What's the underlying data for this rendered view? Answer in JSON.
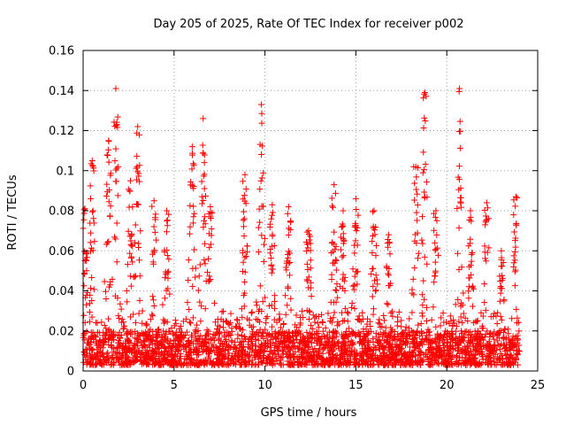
{
  "chart_data": {
    "type": "scatter",
    "title": "Day 205 of 2025, Rate Of TEC Index for receiver p002",
    "xlabel": "GPS time / hours",
    "ylabel": "ROTI / TECUs",
    "xlim": [
      0,
      25
    ],
    "ylim": [
      0,
      0.16
    ],
    "xticks": [
      0,
      5,
      10,
      15,
      20,
      25
    ],
    "yticks": [
      0,
      0.02,
      0.04,
      0.06,
      0.08,
      0.1,
      0.12,
      0.14,
      0.16
    ],
    "xtick_labels": [
      "0",
      "5",
      "10",
      "15",
      "20",
      "25"
    ],
    "ytick_labels": [
      "0",
      "0.02",
      "0.04",
      "0.06",
      "0.08",
      "0.1",
      "0.12",
      "0.14",
      "0.16"
    ],
    "grid": true,
    "marker": "+",
    "marker_color": "#ff0000",
    "series": [
      {
        "name": "ROTI",
        "x_range": [
          0,
          24
        ],
        "baseline_range": [
          0.003,
          0.02
        ],
        "peaks": [
          {
            "x": 0.1,
            "y": 0.081
          },
          {
            "x": 0.5,
            "y": 0.105
          },
          {
            "x": 1.4,
            "y": 0.115
          },
          {
            "x": 1.8,
            "y": 0.141
          },
          {
            "x": 2.6,
            "y": 0.095
          },
          {
            "x": 3.0,
            "y": 0.122
          },
          {
            "x": 3.9,
            "y": 0.085
          },
          {
            "x": 4.6,
            "y": 0.08
          },
          {
            "x": 6.0,
            "y": 0.112
          },
          {
            "x": 6.6,
            "y": 0.126
          },
          {
            "x": 7.0,
            "y": 0.082
          },
          {
            "x": 8.9,
            "y": 0.098
          },
          {
            "x": 9.8,
            "y": 0.133
          },
          {
            "x": 10.4,
            "y": 0.083
          },
          {
            "x": 11.3,
            "y": 0.082
          },
          {
            "x": 12.4,
            "y": 0.07
          },
          {
            "x": 13.8,
            "y": 0.093
          },
          {
            "x": 14.3,
            "y": 0.08
          },
          {
            "x": 15.0,
            "y": 0.086
          },
          {
            "x": 16.0,
            "y": 0.08
          },
          {
            "x": 16.8,
            "y": 0.068
          },
          {
            "x": 18.3,
            "y": 0.102
          },
          {
            "x": 18.8,
            "y": 0.139
          },
          {
            "x": 19.4,
            "y": 0.08
          },
          {
            "x": 20.7,
            "y": 0.141
          },
          {
            "x": 21.3,
            "y": 0.08
          },
          {
            "x": 22.2,
            "y": 0.084
          },
          {
            "x": 23.0,
            "y": 0.06
          },
          {
            "x": 23.8,
            "y": 0.087
          }
        ]
      }
    ]
  }
}
